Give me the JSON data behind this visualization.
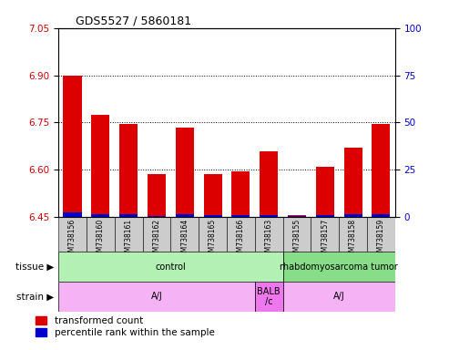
{
  "title": "GDS5527 / 5860181",
  "samples": [
    "GSM738156",
    "GSM738160",
    "GSM738161",
    "GSM738162",
    "GSM738164",
    "GSM738165",
    "GSM738166",
    "GSM738163",
    "GSM738155",
    "GSM738157",
    "GSM738158",
    "GSM738159"
  ],
  "red_values": [
    6.9,
    6.775,
    6.745,
    6.585,
    6.735,
    6.585,
    6.595,
    6.66,
    6.455,
    6.61,
    6.67,
    6.745
  ],
  "blue_values": [
    6.465,
    6.458,
    6.458,
    6.452,
    6.46,
    6.456,
    6.457,
    6.457,
    6.453,
    6.457,
    6.458,
    6.46
  ],
  "ymin": 6.45,
  "ymax": 7.05,
  "yticks_left": [
    6.45,
    6.6,
    6.75,
    6.9,
    7.05
  ],
  "yticks_right": [
    0,
    25,
    50,
    75,
    100
  ],
  "hlines": [
    6.6,
    6.75,
    6.9
  ],
  "tissue_labels": [
    {
      "text": "control",
      "start": 0,
      "end": 8,
      "color": "#b3f0b3"
    },
    {
      "text": "rhabdomyosarcoma tumor",
      "start": 8,
      "end": 12,
      "color": "#88dd88"
    }
  ],
  "strain_labels": [
    {
      "text": "A/J",
      "start": 0,
      "end": 7,
      "color": "#f5b3f5"
    },
    {
      "text": "BALB\n/c",
      "start": 7,
      "end": 8,
      "color": "#ee77ee"
    },
    {
      "text": "A/J",
      "start": 8,
      "end": 12,
      "color": "#f5b3f5"
    }
  ],
  "tissue_row_label": "tissue",
  "strain_row_label": "strain",
  "bar_color_red": "#dd0000",
  "bar_color_blue": "#0000cc",
  "axis_color_left": "#cc0000",
  "axis_color_right": "#0000cc",
  "bar_width": 0.65,
  "legend_red": "transformed count",
  "legend_blue": "percentile rank within the sample",
  "bg_color": "#ffffff",
  "tick_area_bg": "#cccccc"
}
